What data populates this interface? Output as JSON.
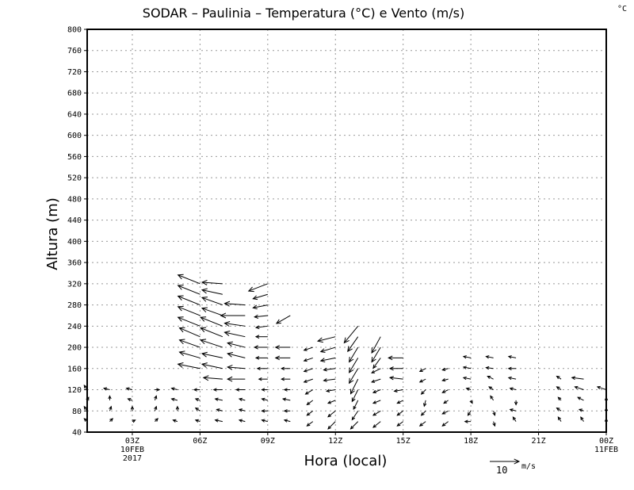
{
  "chart_data": {
    "type": "vector",
    "title": "SODAR – Paulinia – Temperatura (°C) e Vento (m/s)",
    "unit_corner": "°C",
    "xlabel": "Hora (local)",
    "ylabel": "Altura (m)",
    "xlim": [
      1,
      24
    ],
    "ylim": [
      40,
      800
    ],
    "grid": true,
    "x_ticks": [
      {
        "hour": 3,
        "label": "03Z",
        "sub": [
          "10FEB",
          "2017"
        ]
      },
      {
        "hour": 6,
        "label": "06Z",
        "sub": []
      },
      {
        "hour": 9,
        "label": "09Z",
        "sub": []
      },
      {
        "hour": 12,
        "label": "12Z",
        "sub": []
      },
      {
        "hour": 15,
        "label": "15Z",
        "sub": []
      },
      {
        "hour": 18,
        "label": "18Z",
        "sub": []
      },
      {
        "hour": 21,
        "label": "21Z",
        "sub": []
      },
      {
        "hour": 24,
        "label": "00Z",
        "sub": [
          "11FEB"
        ]
      }
    ],
    "y_ticks": [
      40,
      80,
      120,
      160,
      200,
      240,
      280,
      320,
      360,
      400,
      440,
      480,
      520,
      560,
      600,
      640,
      680,
      720,
      760,
      800
    ],
    "reference_vector": {
      "value": 10,
      "label": "10",
      "unit": "m/s"
    },
    "vector_columns": [
      "hour",
      "height_m",
      "u_ms",
      "v_ms"
    ],
    "vectors": [
      [
        1,
        60,
        -1,
        1
      ],
      [
        1,
        80,
        -1,
        1.5
      ],
      [
        1,
        100,
        0.5,
        1
      ],
      [
        1,
        120,
        -1,
        1.5
      ],
      [
        2,
        60,
        1,
        1
      ],
      [
        2,
        80,
        0.5,
        1.5
      ],
      [
        2,
        100,
        0,
        1.5
      ],
      [
        2,
        120,
        -2,
        0.5
      ],
      [
        3,
        60,
        1,
        0.5
      ],
      [
        3,
        80,
        0,
        1.5
      ],
      [
        3,
        100,
        -1.5,
        0.5
      ],
      [
        3,
        120,
        -2,
        0.5
      ],
      [
        4,
        60,
        1,
        1
      ],
      [
        4,
        80,
        0.5,
        1.5
      ],
      [
        4,
        100,
        0.5,
        1.5
      ],
      [
        4,
        120,
        1.5,
        0
      ],
      [
        5,
        60,
        -1.5,
        0.5
      ],
      [
        5,
        80,
        0,
        1.5
      ],
      [
        5,
        100,
        -2,
        0.5
      ],
      [
        5,
        120,
        -2,
        0.5
      ],
      [
        6,
        60,
        -1.5,
        0.5
      ],
      [
        6,
        80,
        -1.5,
        1
      ],
      [
        6,
        100,
        -1.5,
        0.5
      ],
      [
        6,
        120,
        -2,
        0
      ],
      [
        6,
        160,
        -7.5,
        1.5
      ],
      [
        6,
        180,
        -7,
        2
      ],
      [
        6,
        200,
        -7,
        2.5
      ],
      [
        6,
        220,
        -7,
        3
      ],
      [
        6,
        240,
        -7.5,
        3
      ],
      [
        6,
        260,
        -7.5,
        3
      ],
      [
        6,
        280,
        -7.5,
        3
      ],
      [
        6,
        300,
        -7.5,
        3
      ],
      [
        6,
        320,
        -7.5,
        3
      ],
      [
        7,
        60,
        -2.5,
        0.5
      ],
      [
        7,
        80,
        -2,
        0.5
      ],
      [
        7,
        100,
        -2.5,
        0.5
      ],
      [
        7,
        120,
        -3,
        0
      ],
      [
        7,
        140,
        -6.5,
        0.5
      ],
      [
        7,
        160,
        -7,
        1.5
      ],
      [
        7,
        180,
        -7,
        1.5
      ],
      [
        7,
        200,
        -7.5,
        2.5
      ],
      [
        7,
        220,
        -7.5,
        3
      ],
      [
        7,
        240,
        -7.5,
        3
      ],
      [
        7,
        260,
        -7,
        2.5
      ],
      [
        7,
        280,
        -7,
        2.5
      ],
      [
        7,
        300,
        -7,
        1.5
      ],
      [
        7,
        320,
        -7,
        0.5
      ],
      [
        8,
        60,
        -2,
        0.5
      ],
      [
        8,
        80,
        -2,
        0.5
      ],
      [
        8,
        100,
        -2,
        0.5
      ],
      [
        8,
        120,
        -3,
        0
      ],
      [
        8,
        140,
        -6,
        0
      ],
      [
        8,
        160,
        -6,
        0.5
      ],
      [
        8,
        180,
        -6,
        1.5
      ],
      [
        8,
        200,
        -6,
        1.5
      ],
      [
        8,
        220,
        -7,
        1.5
      ],
      [
        8,
        240,
        -7,
        1
      ],
      [
        8,
        260,
        -8.3,
        0
      ],
      [
        8,
        280,
        -7,
        0.5
      ],
      [
        9,
        60,
        -2,
        0.5
      ],
      [
        9,
        80,
        -2,
        0
      ],
      [
        9,
        100,
        -2,
        0.5
      ],
      [
        9,
        120,
        -2,
        0
      ],
      [
        9,
        140,
        -3,
        0
      ],
      [
        9,
        160,
        -3.5,
        0
      ],
      [
        9,
        180,
        -4,
        0
      ],
      [
        9,
        200,
        -4.5,
        0
      ],
      [
        9,
        220,
        -4,
        0
      ],
      [
        9,
        240,
        -4,
        -0.5
      ],
      [
        9,
        260,
        -4.5,
        -0.5
      ],
      [
        9,
        280,
        -5,
        -1
      ],
      [
        9,
        300,
        -5,
        -1.5
      ],
      [
        9,
        320,
        -6.5,
        -2.5
      ],
      [
        10,
        60,
        -2,
        0.5
      ],
      [
        10,
        80,
        -2,
        0
      ],
      [
        10,
        100,
        -2.5,
        0.5
      ],
      [
        10,
        120,
        -2,
        0
      ],
      [
        10,
        140,
        -3,
        0
      ],
      [
        10,
        160,
        -3,
        0
      ],
      [
        10,
        180,
        -5,
        0
      ],
      [
        10,
        200,
        -5,
        0
      ],
      [
        10,
        260,
        -4.7,
        -2.7
      ],
      [
        11,
        60,
        -2,
        -1.5
      ],
      [
        11,
        80,
        -2,
        -1.5
      ],
      [
        11,
        100,
        -2,
        -1.5
      ],
      [
        11,
        120,
        -2.5,
        -1.5
      ],
      [
        11,
        140,
        -3,
        -1
      ],
      [
        11,
        160,
        -3,
        -1
      ],
      [
        11,
        180,
        -3,
        -1
      ],
      [
        11,
        200,
        -3,
        -1
      ],
      [
        12,
        60,
        -2.5,
        -2.5
      ],
      [
        12,
        80,
        -2.5,
        -2
      ],
      [
        12,
        100,
        -2.5,
        -1
      ],
      [
        12,
        120,
        -3,
        -0.5
      ],
      [
        12,
        140,
        -4,
        -0.5
      ],
      [
        12,
        160,
        -4,
        -0.5
      ],
      [
        12,
        180,
        -5,
        -1
      ],
      [
        12,
        200,
        -5,
        -1.5
      ],
      [
        12,
        220,
        -6,
        -1.5
      ],
      [
        13,
        60,
        -2.5,
        -2.5
      ],
      [
        13,
        80,
        -2,
        -3
      ],
      [
        13,
        100,
        -1.5,
        -3
      ],
      [
        13,
        120,
        -2,
        -4
      ],
      [
        13,
        140,
        -2.5,
        -5
      ],
      [
        13,
        160,
        -3,
        -5
      ],
      [
        13,
        180,
        -3,
        -5
      ],
      [
        13,
        200,
        -3,
        -5
      ],
      [
        13,
        220,
        -3.5,
        -5
      ],
      [
        13,
        240,
        -4.7,
        -5.7
      ],
      [
        14,
        60,
        -2.5,
        -2
      ],
      [
        14,
        80,
        -2.5,
        -1.5
      ],
      [
        14,
        100,
        -2.5,
        -1
      ],
      [
        14,
        120,
        -2.5,
        -1
      ],
      [
        14,
        140,
        -3,
        -1
      ],
      [
        14,
        160,
        -3,
        -1.5
      ],
      [
        14,
        180,
        -2.5,
        -3.5
      ],
      [
        14,
        200,
        -3,
        -5
      ],
      [
        14,
        220,
        -3,
        -5.5
      ],
      [
        15,
        60,
        -2,
        -1.5
      ],
      [
        15,
        80,
        -2,
        -1.5
      ],
      [
        15,
        100,
        -2,
        -1
      ],
      [
        15,
        120,
        -3,
        -0.5
      ],
      [
        15,
        140,
        -4.5,
        0.5
      ],
      [
        15,
        160,
        -4.5,
        0
      ],
      [
        15,
        180,
        -5,
        0
      ],
      [
        16,
        60,
        -2,
        -1.5
      ],
      [
        16,
        80,
        -1.5,
        -1.5
      ],
      [
        16,
        100,
        -0.5,
        -2
      ],
      [
        16,
        120,
        -1.5,
        -1.5
      ],
      [
        16,
        140,
        -2,
        -1
      ],
      [
        16,
        160,
        -2,
        -1
      ],
      [
        17,
        60,
        -2,
        -1.5
      ],
      [
        17,
        80,
        -2,
        -1
      ],
      [
        17,
        100,
        -1.5,
        -1
      ],
      [
        17,
        120,
        -2,
        -1
      ],
      [
        17,
        140,
        -2,
        -0.5
      ],
      [
        17,
        160,
        -2,
        -0.5
      ],
      [
        18,
        60,
        -2,
        0
      ],
      [
        18,
        80,
        -1,
        -1.5
      ],
      [
        18,
        100,
        0.5,
        -1
      ],
      [
        18,
        120,
        -1.5,
        0.5
      ],
      [
        18,
        140,
        -2.5,
        0.5
      ],
      [
        18,
        160,
        -2.5,
        0.5
      ],
      [
        18,
        180,
        -2.5,
        0.5
      ],
      [
        19,
        60,
        0.5,
        -1.5
      ],
      [
        19,
        80,
        0.5,
        -1.5
      ],
      [
        19,
        100,
        -1,
        1.5
      ],
      [
        19,
        120,
        -1.5,
        1
      ],
      [
        19,
        140,
        -2,
        1
      ],
      [
        19,
        160,
        -2.5,
        0.3
      ],
      [
        19,
        180,
        -2.5,
        0.5
      ],
      [
        20,
        60,
        -1,
        1.5
      ],
      [
        20,
        80,
        -2,
        0.5
      ],
      [
        20,
        100,
        0,
        -1.5
      ],
      [
        20,
        120,
        -2,
        0.5
      ],
      [
        20,
        140,
        -2.5,
        0.5
      ],
      [
        20,
        160,
        -2.5,
        0
      ],
      [
        20,
        180,
        -2.5,
        0.5
      ],
      [
        22,
        60,
        -1,
        1.5
      ],
      [
        22,
        80,
        -1.5,
        1
      ],
      [
        22,
        100,
        -1,
        1
      ],
      [
        22,
        120,
        -1.5,
        1
      ],
      [
        22,
        140,
        -1.5,
        1
      ],
      [
        23,
        60,
        -1,
        1.5
      ],
      [
        23,
        80,
        -1.5,
        0.5
      ],
      [
        23,
        100,
        -2,
        1
      ],
      [
        23,
        120,
        -3,
        1
      ],
      [
        23,
        140,
        -4,
        0.5
      ],
      [
        24,
        60,
        0,
        1
      ],
      [
        24,
        80,
        0,
        1
      ],
      [
        24,
        100,
        0,
        1
      ],
      [
        24,
        120,
        -3,
        1
      ]
    ]
  }
}
